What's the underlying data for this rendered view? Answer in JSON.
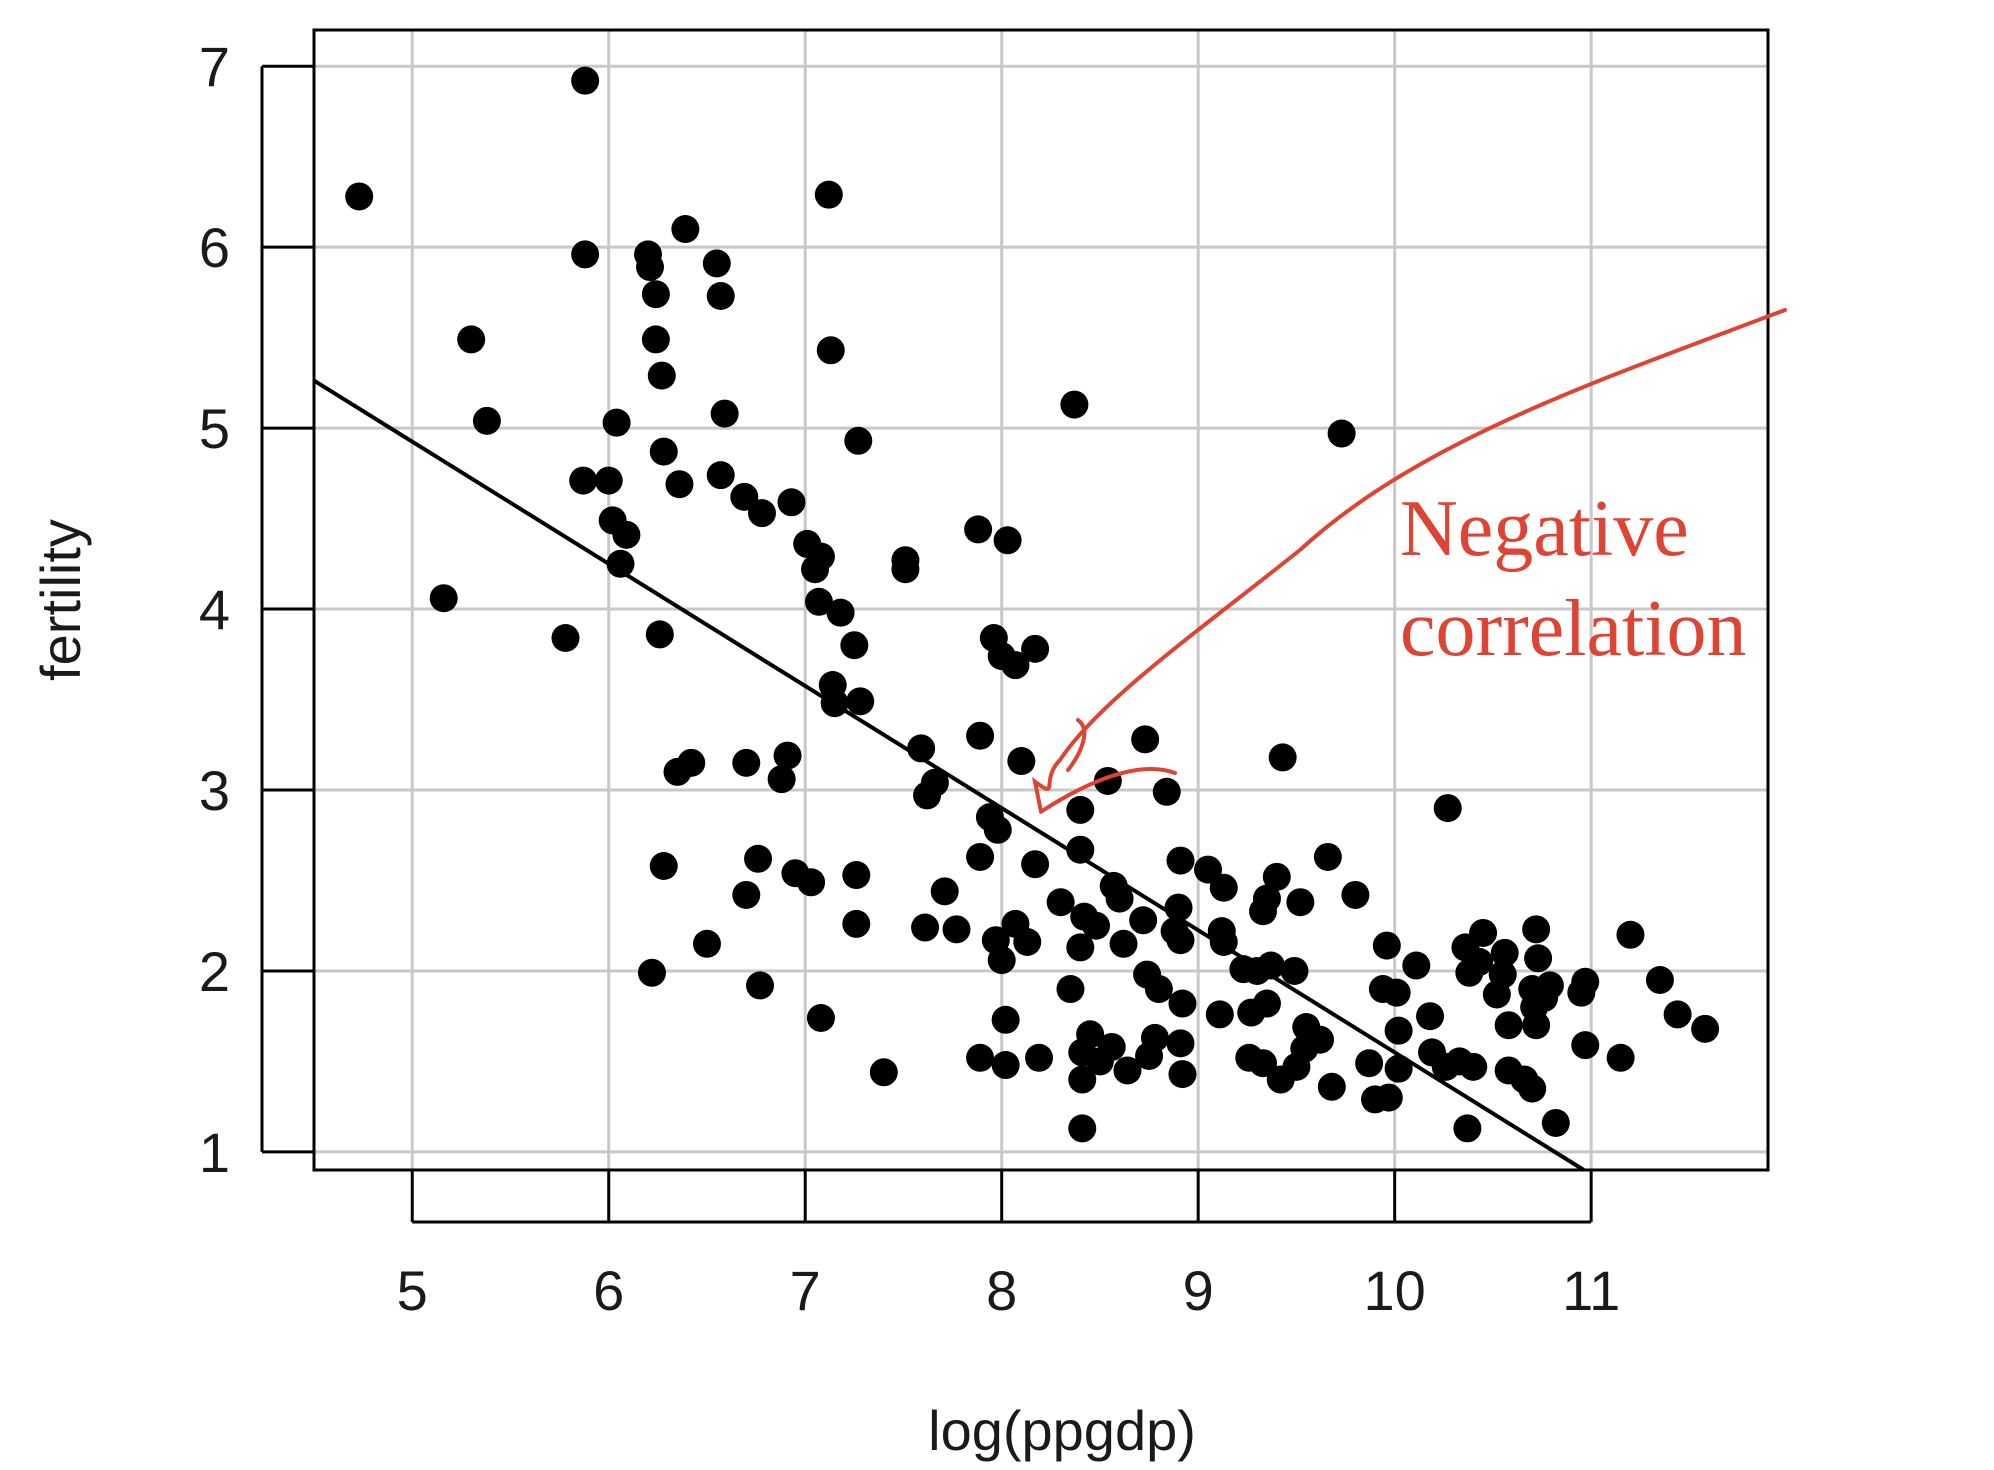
{
  "chart_data": {
    "type": "scatter",
    "xlabel": "log(ppgdp)",
    "ylabel": "fertility",
    "xlim": [
      4.5,
      11.9
    ],
    "ylim": [
      0.9,
      7.2
    ],
    "x_ticks": [
      5,
      6,
      7,
      8,
      9,
      10,
      11
    ],
    "y_ticks": [
      1,
      2,
      3,
      4,
      5,
      6,
      7
    ],
    "x_tick_labels": [
      "5",
      "6",
      "7",
      "8",
      "9",
      "10",
      "11"
    ],
    "y_tick_labels": [
      "1",
      "2",
      "3",
      "4",
      "5",
      "6",
      "7"
    ],
    "grid": true,
    "point_color": "#000000",
    "line_color": "#000000",
    "annotation_color": "#dd4433",
    "fit_line": {
      "intercept": 8.3,
      "slope": -0.675
    },
    "annotation": {
      "text_lines": [
        "Negative",
        "correlation"
      ],
      "points_to": [
        8.2,
        2.88
      ]
    },
    "points": [
      [
        4.73,
        6.28
      ],
      [
        5.88,
        6.92
      ],
      [
        5.88,
        5.96
      ],
      [
        5.3,
        5.49
      ],
      [
        5.38,
        5.04
      ],
      [
        5.16,
        4.06
      ],
      [
        5.78,
        3.84
      ],
      [
        5.87,
        4.71
      ],
      [
        6.0,
        4.71
      ],
      [
        6.04,
        5.03
      ],
      [
        6.02,
        4.49
      ],
      [
        6.09,
        4.41
      ],
      [
        6.06,
        4.25
      ],
      [
        6.2,
        5.96
      ],
      [
        6.21,
        5.89
      ],
      [
        6.24,
        5.74
      ],
      [
        6.24,
        5.49
      ],
      [
        6.27,
        5.29
      ],
      [
        6.28,
        4.87
      ],
      [
        6.36,
        4.69
      ],
      [
        6.39,
        6.1
      ],
      [
        6.55,
        5.91
      ],
      [
        6.57,
        5.73
      ],
      [
        6.59,
        5.08
      ],
      [
        6.57,
        4.74
      ],
      [
        6.69,
        4.62
      ],
      [
        6.78,
        4.53
      ],
      [
        6.93,
        4.59
      ],
      [
        7.12,
        6.29
      ],
      [
        7.13,
        5.43
      ],
      [
        7.27,
        4.93
      ],
      [
        7.01,
        4.36
      ],
      [
        7.08,
        4.29
      ],
      [
        7.05,
        4.22
      ],
      [
        7.07,
        4.04
      ],
      [
        7.18,
        3.98
      ],
      [
        7.25,
        3.8
      ],
      [
        7.14,
        3.58
      ],
      [
        7.15,
        3.48
      ],
      [
        7.28,
        3.49
      ],
      [
        6.26,
        3.86
      ],
      [
        6.35,
        3.1
      ],
      [
        6.42,
        3.15
      ],
      [
        6.7,
        3.15
      ],
      [
        6.91,
        3.19
      ],
      [
        6.88,
        3.06
      ],
      [
        6.28,
        2.58
      ],
      [
        6.22,
        1.99
      ],
      [
        6.5,
        2.15
      ],
      [
        6.76,
        2.62
      ],
      [
        6.7,
        2.42
      ],
      [
        6.77,
        1.92
      ],
      [
        6.95,
        2.54
      ],
      [
        7.03,
        2.49
      ],
      [
        7.26,
        2.53
      ],
      [
        7.26,
        2.26
      ],
      [
        7.08,
        1.74
      ],
      [
        7.4,
        1.44
      ],
      [
        7.51,
        4.27
      ],
      [
        7.51,
        4.22
      ],
      [
        7.88,
        4.44
      ],
      [
        8.03,
        4.38
      ],
      [
        7.96,
        3.84
      ],
      [
        8.0,
        3.74
      ],
      [
        8.07,
        3.69
      ],
      [
        8.17,
        3.78
      ],
      [
        7.89,
        3.3
      ],
      [
        8.1,
        3.16
      ],
      [
        7.59,
        3.23
      ],
      [
        7.66,
        3.04
      ],
      [
        7.62,
        2.97
      ],
      [
        7.94,
        2.85
      ],
      [
        7.98,
        2.78
      ],
      [
        7.89,
        2.63
      ],
      [
        8.17,
        2.59
      ],
      [
        7.71,
        2.44
      ],
      [
        7.61,
        2.24
      ],
      [
        7.77,
        2.23
      ],
      [
        8.07,
        2.26
      ],
      [
        7.97,
        2.17
      ],
      [
        8.13,
        2.16
      ],
      [
        8.0,
        2.06
      ],
      [
        8.02,
        1.73
      ],
      [
        7.89,
        1.52
      ],
      [
        8.02,
        1.48
      ],
      [
        8.37,
        5.13
      ],
      [
        8.4,
        2.89
      ],
      [
        8.4,
        2.67
      ],
      [
        8.3,
        2.38
      ],
      [
        8.42,
        2.3
      ],
      [
        8.48,
        2.25
      ],
      [
        8.4,
        2.13
      ],
      [
        8.35,
        1.9
      ],
      [
        8.45,
        1.65
      ],
      [
        8.41,
        1.55
      ],
      [
        8.41,
        1.4
      ],
      [
        8.41,
        1.13
      ],
      [
        8.19,
        1.52
      ],
      [
        8.54,
        3.05
      ],
      [
        8.73,
        3.28
      ],
      [
        8.84,
        2.99
      ],
      [
        8.57,
        2.47
      ],
      [
        8.6,
        2.4
      ],
      [
        8.72,
        2.28
      ],
      [
        8.62,
        2.15
      ],
      [
        8.74,
        1.98
      ],
      [
        8.8,
        1.9
      ],
      [
        8.88,
        2.22
      ],
      [
        8.91,
        2.61
      ],
      [
        8.9,
        2.35
      ],
      [
        8.91,
        2.17
      ],
      [
        8.78,
        1.63
      ],
      [
        8.75,
        1.53
      ],
      [
        8.64,
        1.45
      ],
      [
        8.56,
        1.58
      ],
      [
        8.5,
        1.5
      ],
      [
        8.91,
        1.6
      ],
      [
        8.92,
        1.43
      ],
      [
        8.92,
        1.82
      ],
      [
        9.05,
        2.56
      ],
      [
        9.13,
        2.46
      ],
      [
        9.12,
        2.22
      ],
      [
        9.13,
        2.16
      ],
      [
        9.11,
        1.76
      ],
      [
        9.23,
        2.01
      ],
      [
        9.3,
        2.0
      ],
      [
        9.27,
        1.77
      ],
      [
        9.35,
        1.82
      ],
      [
        9.35,
        2.4
      ],
      [
        9.4,
        2.52
      ],
      [
        9.33,
        2.33
      ],
      [
        9.37,
        2.03
      ],
      [
        9.43,
        3.18
      ],
      [
        9.52,
        2.38
      ],
      [
        9.49,
        2.0
      ],
      [
        9.26,
        1.52
      ],
      [
        9.33,
        1.49
      ],
      [
        9.42,
        1.4
      ],
      [
        9.5,
        1.47
      ],
      [
        9.54,
        1.57
      ],
      [
        9.55,
        1.69
      ],
      [
        9.62,
        1.62
      ],
      [
        9.66,
        2.63
      ],
      [
        9.8,
        2.42
      ],
      [
        9.68,
        1.36
      ],
      [
        9.73,
        4.97
      ],
      [
        9.87,
        1.49
      ],
      [
        9.9,
        1.29
      ],
      [
        9.97,
        1.3
      ],
      [
        9.94,
        1.9
      ],
      [
        9.96,
        2.14
      ],
      [
        10.01,
        1.88
      ],
      [
        10.02,
        1.67
      ],
      [
        10.02,
        1.46
      ],
      [
        10.11,
        2.03
      ],
      [
        10.18,
        1.75
      ],
      [
        10.19,
        1.55
      ],
      [
        10.26,
        1.47
      ],
      [
        10.27,
        2.9
      ],
      [
        10.33,
        1.5
      ],
      [
        10.37,
        1.13
      ],
      [
        10.4,
        1.47
      ],
      [
        10.36,
        2.13
      ],
      [
        10.38,
        1.99
      ],
      [
        10.45,
        2.21
      ],
      [
        10.43,
        2.05
      ],
      [
        10.52,
        1.87
      ],
      [
        10.56,
        2.1
      ],
      [
        10.55,
        1.98
      ],
      [
        10.58,
        1.7
      ],
      [
        10.58,
        1.45
      ],
      [
        10.66,
        1.4
      ],
      [
        10.7,
        1.35
      ],
      [
        10.72,
        2.23
      ],
      [
        10.73,
        2.07
      ],
      [
        10.7,
        1.9
      ],
      [
        10.76,
        1.85
      ],
      [
        10.79,
        1.92
      ],
      [
        10.71,
        1.8
      ],
      [
        10.72,
        1.7
      ],
      [
        10.82,
        1.16
      ],
      [
        10.95,
        1.88
      ],
      [
        10.97,
        1.94
      ],
      [
        10.97,
        1.59
      ],
      [
        11.15,
        1.52
      ],
      [
        11.2,
        2.2
      ],
      [
        11.35,
        1.95
      ],
      [
        11.44,
        1.76
      ],
      [
        11.58,
        1.68
      ]
    ]
  }
}
